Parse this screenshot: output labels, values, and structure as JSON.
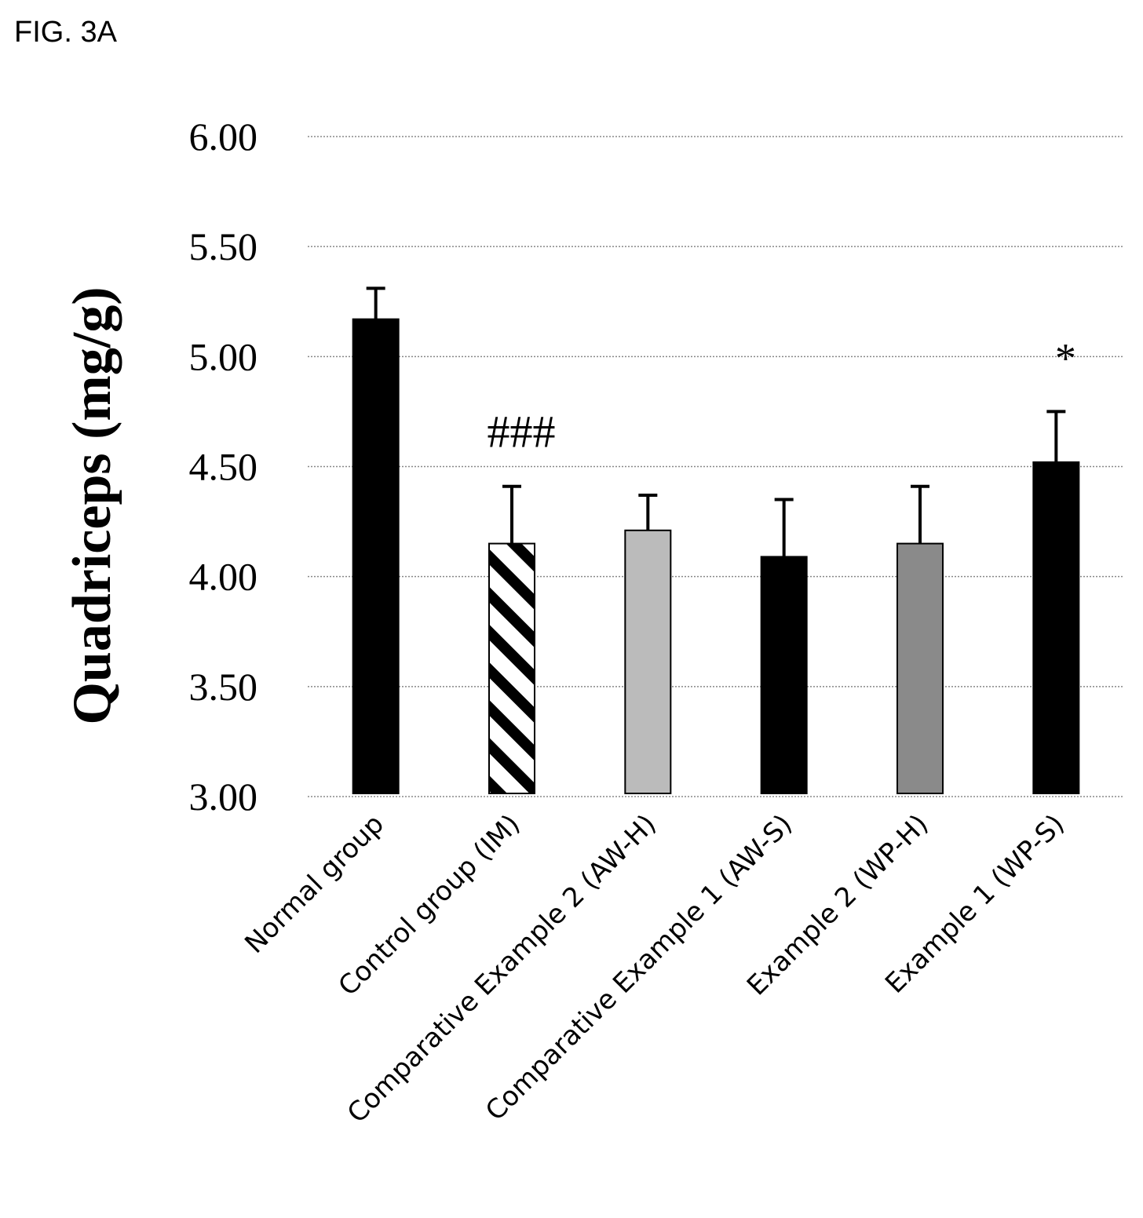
{
  "figure_label": "FIG. 3A",
  "chart_data": {
    "type": "bar",
    "title": "",
    "xlabel": "",
    "ylabel": "Quadriceps (mg/g)",
    "ylim": [
      3.0,
      6.0
    ],
    "yticks": [
      "6.00",
      "5.50",
      "5.00",
      "4.50",
      "4.00",
      "3.50",
      "3.00"
    ],
    "grid": true,
    "categories": [
      "Normal group",
      "Control group (IM)",
      "Comparative Example 2 (AW-H)",
      "Comparative Example 1 (AW-S)",
      "Example 2 (WP-H)",
      "Example 1 (WP-S)"
    ],
    "values": [
      5.17,
      4.15,
      4.21,
      4.09,
      4.15,
      4.52
    ],
    "errors": [
      0.14,
      0.26,
      0.16,
      0.26,
      0.26,
      0.23
    ],
    "fills": [
      "#000000",
      "hatch",
      "#bbbbbb",
      "#000000",
      "#8a8a8a",
      "#000000"
    ],
    "annotations": [
      {
        "category_index": 1,
        "text": "###"
      },
      {
        "category_index": 5,
        "text": "*"
      }
    ]
  }
}
